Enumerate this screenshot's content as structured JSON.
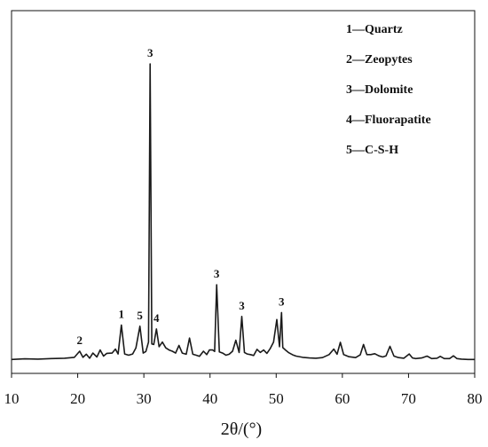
{
  "chart_data": {
    "type": "line",
    "title": "",
    "xlabel": "2θ/(°)",
    "ylabel": "",
    "xlim": [
      10,
      80
    ],
    "ylim": [
      0,
      100
    ],
    "xticks": [
      10,
      20,
      30,
      40,
      50,
      60,
      70,
      80
    ],
    "grid": false,
    "series": [
      {
        "x": [
          10,
          12,
          14,
          16,
          18,
          19.5,
          20.3,
          20.8,
          21.3,
          21.8,
          22.3,
          22.9,
          23.4,
          23.9,
          24.4,
          25.2,
          25.7,
          26.1,
          26.6,
          27.1,
          27.7,
          28.3,
          28.8,
          29.4,
          29.9,
          30.3,
          30.7,
          30.95,
          31.2,
          31.5,
          31.9,
          32.3,
          32.8,
          33.3,
          33.8,
          34.3,
          34.8,
          35.3,
          35.8,
          36.4,
          36.9,
          37.4,
          37.9,
          38.4,
          39.0,
          39.5,
          39.9,
          40.4,
          40.7,
          41.0,
          41.4,
          41.9,
          42.4,
          42.9,
          43.4,
          43.9,
          44.4,
          44.8,
          45.2,
          45.6,
          46.1,
          46.6,
          47.1,
          47.6,
          48.1,
          48.6,
          49.1,
          49.6,
          50.1,
          50.5,
          50.8,
          51.0,
          51.4,
          51.9,
          52.5,
          53.0,
          54,
          55,
          56,
          57,
          58,
          58.7,
          59.2,
          59.7,
          60.2,
          61,
          62,
          62.7,
          63.2,
          63.7,
          64.3,
          64.9,
          65.5,
          66.1,
          66.6,
          67.2,
          67.8,
          68.5,
          69.3,
          70.1,
          70.6,
          71.1,
          72.0,
          72.8,
          73.5,
          74.3,
          74.8,
          75.4,
          76.2,
          76.8,
          77.3,
          78,
          79,
          80
        ],
        "y": [
          0.5,
          0.7,
          0.6,
          0.8,
          0.9,
          1.2,
          3.2,
          1.2,
          2.2,
          0.9,
          2.6,
          1.3,
          3.6,
          1.6,
          2.5,
          2.6,
          3.9,
          2.3,
          11.8,
          2.3,
          1.9,
          2.3,
          4.3,
          11.4,
          2.6,
          3.1,
          6.2,
          97.5,
          5.6,
          5.4,
          10.5,
          4.7,
          6.2,
          4.3,
          3.6,
          3.2,
          2.6,
          5.1,
          2.6,
          2.2,
          7.5,
          2.2,
          1.9,
          1.5,
          3.2,
          2.1,
          3.6,
          3.6,
          3.1,
          25.0,
          3.0,
          2.6,
          1.9,
          2.2,
          3.2,
          6.8,
          2.8,
          14.6,
          2.8,
          2.3,
          2.1,
          1.8,
          3.8,
          2.8,
          3.6,
          2.5,
          4.1,
          6.2,
          13.6,
          4.7,
          15.9,
          4.4,
          3.6,
          2.7,
          2.0,
          1.6,
          1.2,
          1.0,
          0.9,
          1.1,
          2.1,
          3.9,
          2.2,
          6.1,
          2.1,
          1.4,
          1.1,
          2.0,
          5.4,
          2.1,
          2.1,
          2.4,
          1.7,
          1.3,
          1.7,
          4.8,
          1.6,
          1.1,
          0.9,
          2.3,
          1.0,
          0.8,
          1.0,
          1.6,
          0.8,
          0.9,
          1.5,
          0.8,
          0.8,
          1.7,
          0.8,
          0.6,
          0.5,
          0.5
        ]
      }
    ],
    "peak_labels": [
      {
        "text": "2",
        "x": 20.3,
        "y": 3.2
      },
      {
        "text": "1",
        "x": 26.6,
        "y": 11.8
      },
      {
        "text": "5",
        "x": 29.4,
        "y": 11.4
      },
      {
        "text": "3",
        "x": 30.95,
        "y": 97.5
      },
      {
        "text": "4",
        "x": 31.9,
        "y": 10.5
      },
      {
        "text": "3",
        "x": 41.0,
        "y": 25.0
      },
      {
        "text": "3",
        "x": 44.8,
        "y": 14.6
      },
      {
        "text": "3",
        "x": 50.8,
        "y": 15.9
      }
    ],
    "legend": {
      "placement": "top-right",
      "entries": [
        "1—Quartz",
        "2—Zeopytes",
        "3—Dolomite",
        "4—Fluorapatite",
        "5—C-S-H"
      ]
    }
  }
}
